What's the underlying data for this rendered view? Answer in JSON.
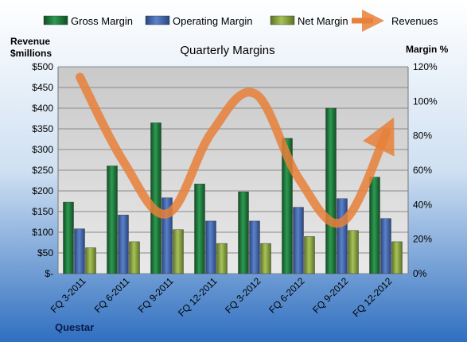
{
  "chart_data": {
    "type": "bar",
    "title": "Quarterly Margins",
    "left_axis_title": [
      "Revenue",
      "$millions"
    ],
    "right_axis_title": "Margin %",
    "source_label": "Questar",
    "categories": [
      "FQ 3-2011",
      "FQ 6-2011",
      "FQ 9-2011",
      "FQ 12-2011",
      "FQ 3-2012",
      "FQ 6-2012",
      "FQ 9-2012",
      "FQ 12-2012"
    ],
    "left_ticks": [
      "$-",
      "$50",
      "$100",
      "$150",
      "$200",
      "$250",
      "$300",
      "$350",
      "$400",
      "$450",
      "$500"
    ],
    "right_ticks": [
      "0%",
      "20%",
      "40%",
      "60%",
      "80%",
      "100%",
      "120%"
    ],
    "left_ylim": [
      0,
      500
    ],
    "right_ylim": [
      0,
      120
    ],
    "grid": true,
    "legend_position": "top",
    "series": [
      {
        "name": "Gross Margin",
        "axis": "right",
        "color": "#1e7a3a",
        "values": [
          41.5,
          62.5,
          87.5,
          52,
          47.5,
          78.5,
          96,
          56
        ]
      },
      {
        "name": "Operating Margin",
        "axis": "right",
        "color": "#3f64ad",
        "values": [
          26,
          34,
          44,
          30.5,
          30.5,
          38.5,
          43.5,
          32
        ]
      },
      {
        "name": "Net Margin",
        "axis": "right",
        "color": "#8fab3c",
        "values": [
          15,
          18.5,
          25.5,
          17.5,
          17.5,
          21.5,
          25,
          18.5
        ]
      },
      {
        "name": "Revenues",
        "axis": "left",
        "type": "line",
        "color": "#e8803a",
        "values": [
          475,
          270,
          145,
          340,
          435,
          230,
          125,
          340
        ]
      }
    ]
  }
}
